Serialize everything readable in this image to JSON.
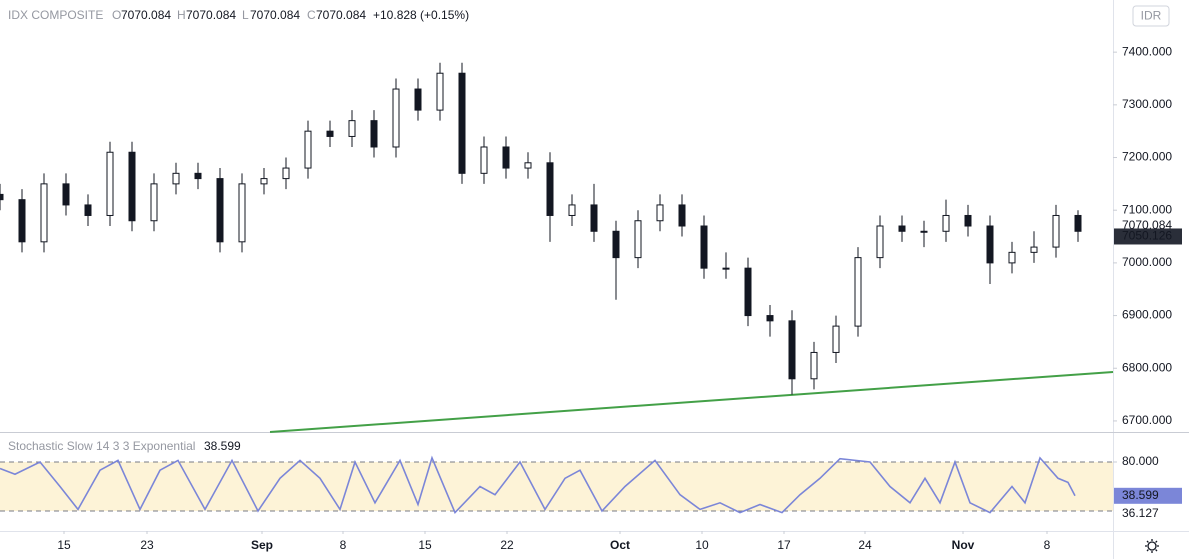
{
  "header": {
    "symbol": "IDX COMPOSITE",
    "o_key": "O",
    "o_val": "7070.084",
    "h_key": "H",
    "h_val": "7070.084",
    "l_key": "L",
    "l_val": "7070.084",
    "c_key": "C",
    "c_val": "7070.084",
    "change": "+10.828 (+0.15%)",
    "currency": "IDR"
  },
  "chart_data": [
    {
      "type": "candlestick",
      "color": "#131722",
      "xlim": [
        0,
        1113
      ],
      "ylim": [
        6679,
        7499
      ],
      "x": [
        0,
        22,
        44,
        66,
        88,
        110,
        132,
        154,
        176,
        198,
        220,
        242,
        264,
        286,
        308,
        330,
        352,
        374,
        396,
        418,
        440,
        462,
        484,
        506,
        528,
        550,
        572,
        594,
        616,
        638,
        660,
        682,
        704,
        726,
        748,
        770,
        792,
        814,
        836,
        858,
        880,
        902,
        924,
        946,
        968,
        990,
        1012,
        1034,
        1056,
        1078
      ],
      "open": [
        7130,
        7120,
        7040,
        7150,
        7110,
        7090,
        7210,
        7080,
        7150,
        7170,
        7160,
        7040,
        7150,
        7160,
        7180,
        7250,
        7240,
        7270,
        7220,
        7330,
        7290,
        7360,
        7170,
        7220,
        7180,
        7190,
        7090,
        7110,
        7060,
        7010,
        7080,
        7110,
        7070,
        6990,
        6990,
        6900,
        6890,
        6780,
        6830,
        6880,
        7010,
        7070,
        7060,
        7060,
        7090,
        7070,
        7000,
        7020,
        7030,
        7090
      ],
      "high": [
        7150,
        7140,
        7170,
        7170,
        7130,
        7230,
        7230,
        7170,
        7190,
        7190,
        7180,
        7170,
        7180,
        7200,
        7270,
        7270,
        7290,
        7290,
        7350,
        7350,
        7380,
        7380,
        7240,
        7240,
        7210,
        7210,
        7130,
        7150,
        7080,
        7100,
        7130,
        7130,
        7090,
        7020,
        7010,
        6920,
        6910,
        6850,
        6900,
        7030,
        7090,
        7090,
        7080,
        7120,
        7110,
        7090,
        7040,
        7060,
        7110,
        7100
      ],
      "low": [
        7100,
        7020,
        7020,
        7090,
        7070,
        7070,
        7060,
        7060,
        7130,
        7140,
        7020,
        7020,
        7130,
        7140,
        7160,
        7220,
        7220,
        7200,
        7200,
        7270,
        7270,
        7150,
        7150,
        7160,
        7160,
        7040,
        7070,
        7040,
        6930,
        6990,
        7060,
        7050,
        6970,
        6970,
        6880,
        6860,
        6750,
        6760,
        6810,
        6860,
        6990,
        7040,
        7030,
        7040,
        7050,
        6960,
        6980,
        7000,
        7010,
        7040
      ],
      "close": [
        7120,
        7040,
        7150,
        7110,
        7090,
        7210,
        7080,
        7150,
        7170,
        7160,
        7040,
        7150,
        7160,
        7180,
        7250,
        7240,
        7270,
        7220,
        7330,
        7290,
        7360,
        7170,
        7220,
        7180,
        7190,
        7090,
        7110,
        7060,
        7010,
        7080,
        7110,
        7070,
        6990,
        6990,
        6900,
        6890,
        6780,
        6830,
        6880,
        7010,
        7070,
        7060,
        7060,
        7090,
        7070,
        7000,
        7020,
        7030,
        7090,
        7060
      ],
      "yticks": [
        {
          "value": 6700,
          "label": "6700.000"
        },
        {
          "value": 6800,
          "label": "6800.000"
        },
        {
          "value": 6900,
          "label": "6900.000"
        },
        {
          "value": 7000,
          "label": "7000.000"
        },
        {
          "value": 7100,
          "label": "7100.000"
        },
        {
          "value": 7200,
          "label": "7200.000"
        },
        {
          "value": 7300,
          "label": "7300.000"
        },
        {
          "value": 7400,
          "label": "7400.000"
        }
      ],
      "xticks": [
        {
          "value": 64,
          "label": "15"
        },
        {
          "value": 147,
          "label": "23"
        },
        {
          "value": 262,
          "label": "Sep"
        },
        {
          "value": 343,
          "label": "8"
        },
        {
          "value": 425,
          "label": "15"
        },
        {
          "value": 507,
          "label": "22"
        },
        {
          "value": 620,
          "label": "Oct"
        },
        {
          "value": 702,
          "label": "10"
        },
        {
          "value": 784,
          "label": "17"
        },
        {
          "value": 865,
          "label": "24"
        },
        {
          "value": 963,
          "label": "Nov"
        },
        {
          "value": 1047,
          "label": "8"
        }
      ],
      "trendline": {
        "color": "#43a047",
        "x": [
          270,
          1113
        ],
        "values": [
          6679,
          6793
        ]
      },
      "price_markers": [
        7070.084,
        7050.126
      ]
    },
    {
      "type": "line",
      "title": "Stochastic Slow 14 3 3 Exponential",
      "value_label": "38.599",
      "color": "#7b86d8",
      "band_color": "#fdf3d7",
      "bands": [
        20,
        80
      ],
      "xlim": [
        0,
        1113
      ],
      "ylim": [
        -4.5,
        115.5
      ],
      "x": [
        0,
        15,
        40,
        60,
        78,
        100,
        118,
        140,
        160,
        178,
        205,
        232,
        258,
        280,
        300,
        320,
        340,
        355,
        375,
        400,
        418,
        432,
        455,
        480,
        495,
        520,
        545,
        565,
        580,
        602,
        625,
        655,
        680,
        700,
        720,
        740,
        760,
        782,
        800,
        820,
        840,
        870,
        890,
        910,
        925,
        940,
        955,
        970,
        990,
        1012,
        1025,
        1040,
        1058,
        1068,
        1075
      ],
      "values": [
        72,
        65,
        80,
        50,
        22,
        70,
        82,
        22,
        70,
        82,
        22,
        82,
        20,
        60,
        82,
        60,
        22,
        80,
        30,
        82,
        28,
        85,
        18,
        50,
        40,
        80,
        22,
        60,
        70,
        20,
        50,
        82,
        40,
        22,
        30,
        18,
        28,
        18,
        40,
        60,
        84,
        80,
        50,
        30,
        60,
        30,
        80,
        30,
        18,
        50,
        30,
        85,
        60,
        55,
        38.599
      ],
      "yticks": [
        {
          "value": 80,
          "label": "80.000"
        }
      ],
      "marker": 38.599,
      "second_label": "36.127"
    }
  ]
}
